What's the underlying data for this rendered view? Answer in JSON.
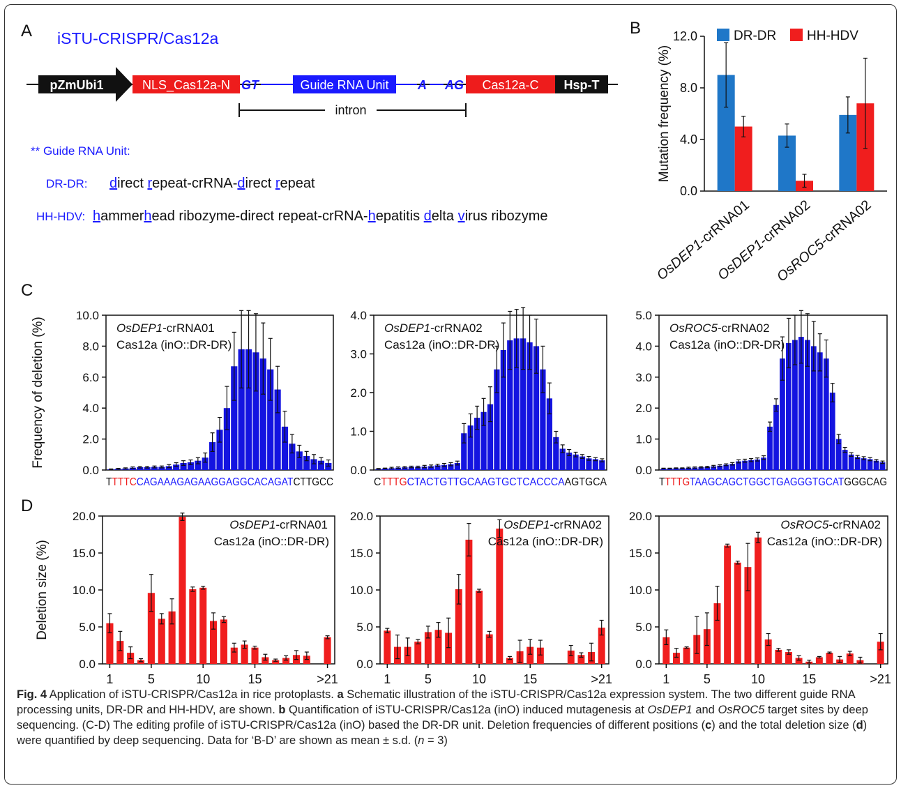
{
  "panel_labels": [
    "A",
    "B",
    "C",
    "D"
  ],
  "panel_a": {
    "title": "iSTU-CRISPR/Cas12a",
    "blocks": {
      "promoter": "pZmUbi1",
      "nls": "NLS_Cas12a-N",
      "gt": "GT",
      "guide": "Guide RNA Unit",
      "a": "A",
      "ag": "AG",
      "cas_c": "Cas12a-C",
      "term": "Hsp-T"
    },
    "intron_label": "intron",
    "guide_heading": "** Guide RNA Unit:",
    "drdr_label": "DR-DR:",
    "drdr_parts": [
      {
        "t": "d",
        "u": true
      },
      {
        "t": "irect ",
        "u": false
      },
      {
        "t": "r",
        "u": true
      },
      {
        "t": "epeat-crRNA-",
        "u": false
      },
      {
        "t": "d",
        "u": true
      },
      {
        "t": "irect ",
        "u": false
      },
      {
        "t": "r",
        "u": true
      },
      {
        "t": "epeat",
        "u": false
      }
    ],
    "hhhdv_label": "HH-HDV:",
    "hhhdv_parts": [
      {
        "t": "h",
        "u": true
      },
      {
        "t": "ammer",
        "u": false
      },
      {
        "t": "h",
        "u": true
      },
      {
        "t": "ead ribozyme-direct repeat-crRNA-",
        "u": false
      },
      {
        "t": "h",
        "u": true
      },
      {
        "t": "epatitis ",
        "u": false
      },
      {
        "t": "d",
        "u": true
      },
      {
        "t": "elta ",
        "u": false
      },
      {
        "t": "v",
        "u": true
      },
      {
        "t": "irus ribozyme",
        "u": false
      }
    ],
    "colors": {
      "blue": "#1a1aff",
      "red": "#ee1c1c",
      "black": "#111111"
    }
  },
  "chart_data": [
    {
      "panel": "B",
      "type": "bar",
      "ylabel": "Mutation frequency (%)",
      "ylim": [
        0,
        12
      ],
      "yticks": [
        "0.0",
        "4.0",
        "8.0",
        "12.0"
      ],
      "categories": [
        {
          "ital": "OsDEP1",
          "rest": "-crRNA01"
        },
        {
          "ital": "OsDEP1",
          "rest": "-crRNA02"
        },
        {
          "ital": "OsROC5",
          "rest": "-crRNA02"
        }
      ],
      "series": [
        {
          "name": "DR-DR",
          "color": "#1f77c8",
          "values": [
            9.0,
            4.3,
            5.9
          ],
          "err": [
            2.5,
            0.9,
            1.4
          ]
        },
        {
          "name": "HH-HDV",
          "color": "#f01e1e",
          "values": [
            5.0,
            0.8,
            6.8
          ],
          "err": [
            0.8,
            0.5,
            3.5
          ]
        }
      ],
      "legend": "top"
    },
    {
      "panel": "C",
      "type": "bar",
      "ylabel": "Frequency of deletion (%)",
      "ylim": [
        0,
        10
      ],
      "yticks": [
        "0.0",
        "2.0",
        "4.0",
        "6.0",
        "8.0",
        "10.0"
      ],
      "annotation_ital": "OsDEP1",
      "annotation_rest": "-crRNA01",
      "annotation2": "Cas12a (inO::DR-DR)",
      "color": "#1414e0",
      "sequence": [
        {
          "t": "T",
          "c": "#111111"
        },
        {
          "t": "TTTC",
          "c": "#ee1c1c"
        },
        {
          "t": "CAGAAAGAGAAGGAGGCACAGAT",
          "c": "#1a1aff"
        },
        {
          "t": "CTTGCC",
          "c": "#111111"
        }
      ],
      "values": [
        0.05,
        0.08,
        0.1,
        0.15,
        0.18,
        0.18,
        0.2,
        0.2,
        0.25,
        0.35,
        0.45,
        0.5,
        0.6,
        0.8,
        1.8,
        2.6,
        4.0,
        6.7,
        7.8,
        7.8,
        7.6,
        7.2,
        6.5,
        5.2,
        2.8,
        1.7,
        1.2,
        0.9,
        0.7,
        0.6,
        0.45
      ],
      "err": [
        0.02,
        0.03,
        0.04,
        0.05,
        0.05,
        0.05,
        0.06,
        0.06,
        0.1,
        0.12,
        0.15,
        0.15,
        0.2,
        0.3,
        0.6,
        0.8,
        1.4,
        2.2,
        2.5,
        2.5,
        2.5,
        2.3,
        2.0,
        1.5,
        1.0,
        0.6,
        0.4,
        0.3,
        0.3,
        0.2,
        0.2
      ]
    },
    {
      "panel": "C",
      "type": "bar",
      "ylabel": "",
      "ylim": [
        0,
        4
      ],
      "yticks": [
        "0.0",
        "1.0",
        "2.0",
        "3.0",
        "4.0"
      ],
      "annotation_ital": "OsDEP1",
      "annotation_rest": "-crRNA02",
      "annotation2": "Cas12a (inO::DR-DR)",
      "color": "#1414e0",
      "sequence": [
        {
          "t": "C",
          "c": "#111111"
        },
        {
          "t": "TTTG",
          "c": "#ee1c1c"
        },
        {
          "t": "CTACTGTTGCAAGTGCTCACCCA",
          "c": "#1a1aff"
        },
        {
          "t": "AGTGCA",
          "c": "#111111"
        }
      ],
      "values": [
        0.03,
        0.04,
        0.05,
        0.06,
        0.07,
        0.08,
        0.08,
        0.09,
        0.1,
        0.12,
        0.13,
        0.15,
        0.18,
        0.95,
        1.15,
        1.35,
        1.5,
        1.7,
        2.6,
        3.1,
        3.35,
        3.4,
        3.4,
        3.3,
        3.2,
        2.6,
        1.85,
        0.85,
        0.55,
        0.45,
        0.4,
        0.35,
        0.3,
        0.28,
        0.25
      ],
      "err": [
        0.01,
        0.01,
        0.02,
        0.02,
        0.02,
        0.02,
        0.02,
        0.03,
        0.03,
        0.03,
        0.04,
        0.04,
        0.05,
        0.25,
        0.3,
        0.3,
        0.35,
        0.45,
        0.6,
        0.7,
        0.75,
        0.75,
        0.8,
        0.7,
        0.7,
        0.6,
        0.4,
        0.15,
        0.1,
        0.08,
        0.06,
        0.05,
        0.05,
        0.04,
        0.04
      ]
    },
    {
      "panel": "C",
      "type": "bar",
      "ylabel": "",
      "ylim": [
        0,
        5
      ],
      "yticks": [
        "0.0",
        "1.0",
        "2.0",
        "3.0",
        "4.0",
        "5.0"
      ],
      "annotation_ital": "OsROC5",
      "annotation_rest": "-crRNA02",
      "annotation2": "Cas12a (inO::DR-DR)",
      "color": "#1414e0",
      "sequence": [
        {
          "t": "T",
          "c": "#111111"
        },
        {
          "t": "TTTG",
          "c": "#ee1c1c"
        },
        {
          "t": "TAAGCAGCTGGCTGAGGGTGCAT",
          "c": "#1a1aff"
        },
        {
          "t": "GGGCAG",
          "c": "#111111"
        }
      ],
      "values": [
        0.05,
        0.05,
        0.06,
        0.06,
        0.07,
        0.08,
        0.09,
        0.1,
        0.12,
        0.14,
        0.17,
        0.2,
        0.28,
        0.3,
        0.32,
        0.34,
        0.4,
        1.4,
        2.1,
        3.6,
        4.1,
        4.2,
        4.3,
        4.2,
        4.0,
        3.8,
        3.6,
        2.5,
        1.0,
        0.65,
        0.5,
        0.42,
        0.38,
        0.35,
        0.3,
        0.25
      ],
      "err": [
        0.01,
        0.01,
        0.01,
        0.01,
        0.02,
        0.02,
        0.02,
        0.02,
        0.03,
        0.03,
        0.03,
        0.04,
        0.05,
        0.05,
        0.05,
        0.05,
        0.06,
        0.15,
        0.2,
        0.7,
        0.8,
        0.8,
        0.85,
        0.85,
        0.8,
        0.6,
        0.6,
        0.3,
        0.15,
        0.08,
        0.06,
        0.05,
        0.05,
        0.05,
        0.04,
        0.04
      ]
    },
    {
      "panel": "D",
      "type": "bar",
      "ylabel": "Deletion size (%)",
      "ylim": [
        0,
        20
      ],
      "yticks": [
        "0.0",
        "5.0",
        "10.0",
        "15.0",
        "20.0"
      ],
      "xticks": [
        {
          "i": 0,
          "t": "1"
        },
        {
          "i": 4,
          "t": "5"
        },
        {
          "i": 9,
          "t": "10"
        },
        {
          "i": 14,
          "t": "15"
        },
        {
          "i": 21,
          "t": ">21"
        }
      ],
      "annotation_ital": "OsDEP1",
      "annotation_rest": "-crRNA01",
      "annotation2": "Cas12a (inO::DR-DR)",
      "color": "#f01e1e",
      "values": [
        5.5,
        3.1,
        1.5,
        0.5,
        9.6,
        6.1,
        7.1,
        19.9,
        10.1,
        10.3,
        5.8,
        6.0,
        2.2,
        2.6,
        2.2,
        0.9,
        0.5,
        0.8,
        1.2,
        1.1,
        null,
        3.6
      ],
      "err": [
        1.3,
        1.3,
        0.8,
        0.2,
        2.5,
        0.7,
        1.7,
        0.5,
        0.3,
        0.2,
        1.1,
        0.4,
        0.6,
        0.5,
        0.2,
        0.4,
        0.15,
        0.3,
        0.6,
        0.5,
        null,
        0.2
      ]
    },
    {
      "panel": "D",
      "type": "bar",
      "ylabel": "",
      "ylim": [
        0,
        20
      ],
      "yticks": [
        "0.0",
        "5.0",
        "10.0",
        "15.0",
        "20.0"
      ],
      "xticks": [
        {
          "i": 0,
          "t": "1"
        },
        {
          "i": 4,
          "t": "5"
        },
        {
          "i": 9,
          "t": "10"
        },
        {
          "i": 14,
          "t": "15"
        },
        {
          "i": 21,
          "t": ">21"
        }
      ],
      "annotation_ital": "OsDEP1",
      "annotation_rest": "-crRNA02",
      "annotation2": "Cas12a (inO::DR-DR)",
      "color": "#f01e1e",
      "values": [
        4.5,
        2.3,
        2.3,
        3.0,
        4.3,
        4.6,
        4.2,
        10.1,
        16.8,
        9.9,
        4.0,
        18.3,
        0.8,
        1.7,
        2.3,
        2.2,
        null,
        null,
        1.8,
        1.2,
        1.6,
        4.9
      ],
      "err": [
        0.3,
        1.6,
        1.2,
        0.3,
        0.8,
        1.0,
        2.0,
        2.0,
        2.2,
        0.2,
        0.4,
        1.2,
        0.2,
        1.5,
        1.0,
        1.0,
        null,
        null,
        0.7,
        0.3,
        1.2,
        1.0
      ]
    },
    {
      "panel": "D",
      "type": "bar",
      "ylabel": "",
      "ylim": [
        0,
        20
      ],
      "yticks": [
        "0.0",
        "5.0",
        "10.0",
        "15.0",
        "20.0"
      ],
      "xticks": [
        {
          "i": 0,
          "t": "1"
        },
        {
          "i": 4,
          "t": "5"
        },
        {
          "i": 9,
          "t": "10"
        },
        {
          "i": 14,
          "t": "15"
        },
        {
          "i": 21,
          "t": ">21"
        }
      ],
      "annotation_ital": "OsROC5",
      "annotation_rest": "-crRNA02",
      "annotation2": "Cas12a (inO::DR-DR)",
      "color": "#f01e1e",
      "values": [
        3.6,
        1.5,
        2.2,
        3.9,
        4.7,
        8.2,
        16.0,
        13.7,
        13.1,
        17.1,
        3.3,
        1.9,
        1.6,
        0.8,
        0.3,
        0.9,
        1.5,
        0.6,
        1.4,
        0.5,
        null,
        3.0
      ],
      "err": [
        1.0,
        0.6,
        0.1,
        2.5,
        2.2,
        2.3,
        0.2,
        0.2,
        3.2,
        0.7,
        0.8,
        0.2,
        0.3,
        0.3,
        0.2,
        0.1,
        0.1,
        0.4,
        0.3,
        0.4,
        null,
        1.1
      ]
    }
  ],
  "caption": {
    "figlabel": "Fig. 4",
    "t1": " Application of iSTU-CRISPR/Cas12a in rice protoplasts. ",
    "a": "a",
    "t2": " Schematic illustration of the iSTU-CRISPR/Cas12a expression system. The two different guide RNA processing units, DR-DR and HH-HDV, are shown. ",
    "b": "b",
    "t3": " Quantification of iSTU-CRISPR/Cas12a (inO) induced mutagenesis at ",
    "g1": "OsDEP1",
    "t4": " and ",
    "g2": "OsROC5",
    "t5": " target sites by deep sequencing. (C-D) The editing profile of iSTU-CRISPR/Cas12a (inO) based the DR-DR unit. Deletion frequencies of different positions (",
    "c": "c",
    "t6": ") and the total deletion size (",
    "d": "d",
    "t7": ") were quantified by deep sequencing. Data for ‘B-D’ are shown as mean ± s.d. (",
    "n": "n",
    "t8": " = 3)"
  }
}
